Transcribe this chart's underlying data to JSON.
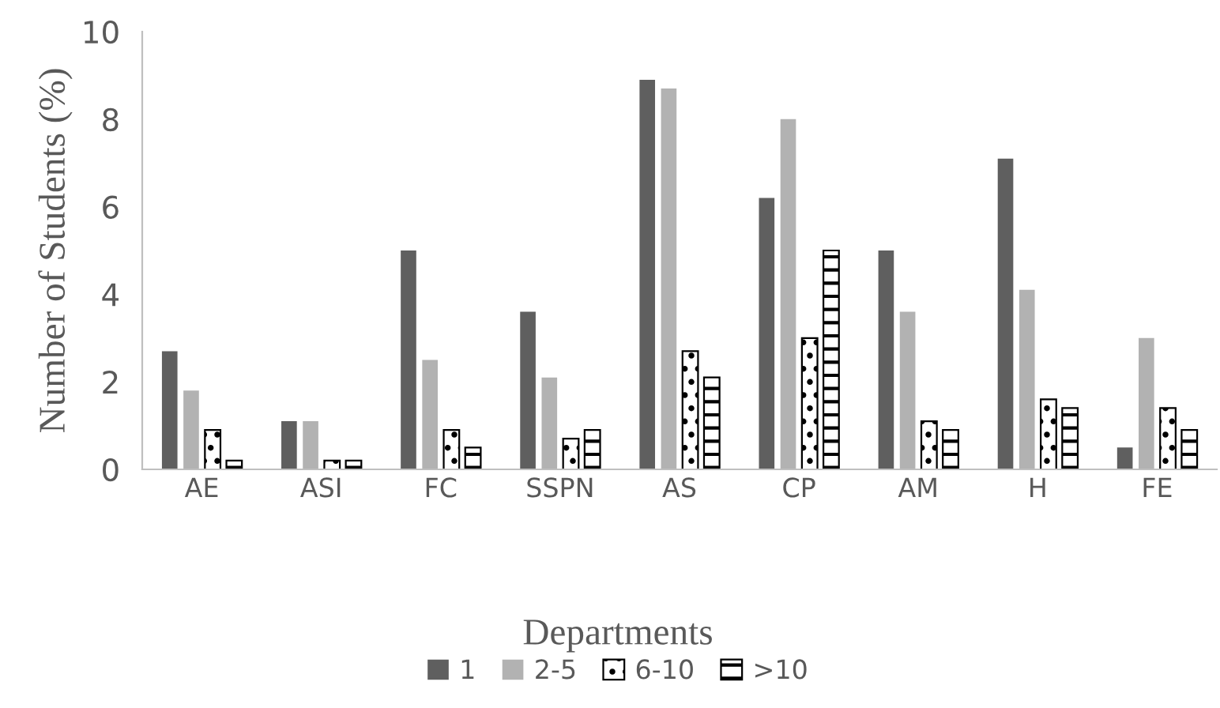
{
  "chart_data": {
    "type": "bar",
    "xlabel": "Departments",
    "ylabel": "Number of Students (%)",
    "categories": [
      "AE",
      "ASI",
      "FC",
      "SSPN",
      "AS",
      "CP",
      "AM",
      "H",
      "FE"
    ],
    "series": [
      {
        "name": "1",
        "color": "#5f5f5f",
        "values": [
          2.7,
          1.1,
          5.0,
          3.6,
          8.9,
          6.2,
          5.0,
          7.1,
          0.5
        ]
      },
      {
        "name": "2-5",
        "color": "#b2b2b2",
        "values": [
          1.8,
          1.1,
          2.5,
          2.1,
          8.7,
          8.0,
          3.6,
          4.1,
          3.0
        ]
      },
      {
        "name": "6-10",
        "color": "#000000",
        "values": [
          0.9,
          0.2,
          0.9,
          0.7,
          2.7,
          3.0,
          1.1,
          1.6,
          1.4
        ]
      },
      {
        "name": ">10",
        "color": "#000000",
        "values": [
          0.2,
          0.2,
          0.5,
          0.9,
          2.1,
          5.0,
          0.9,
          1.4,
          0.9
        ]
      }
    ],
    "ylim": [
      0,
      10
    ],
    "yticks": [
      0,
      2,
      4,
      6,
      8,
      10
    ],
    "grid": false,
    "legend": "bottom"
  }
}
